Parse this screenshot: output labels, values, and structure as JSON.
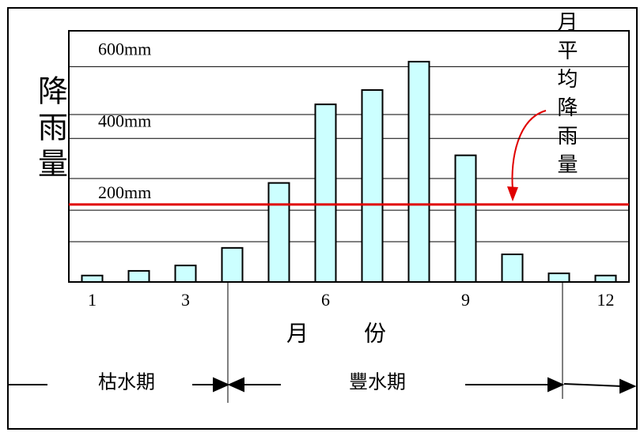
{
  "chart_data": {
    "type": "bar",
    "categories": [
      "1",
      null,
      "3",
      null,
      null,
      "6",
      null,
      null,
      "9",
      null,
      null,
      "12"
    ],
    "values": [
      18,
      31,
      46,
      95,
      276,
      495,
      535,
      614,
      353,
      77,
      24,
      18
    ],
    "color": "#ccffff",
    "ylim": [
      0,
      700
    ],
    "yticks": [
      {
        "value": 200,
        "label": "200mm"
      },
      {
        "value": 400,
        "label": "400mm"
      },
      {
        "value": 600,
        "label": "600mm"
      }
    ],
    "grid": true,
    "y_title": "降雨量",
    "x_title": "月份",
    "reference_line": {
      "label": "月平均降雨量",
      "value": 216,
      "color": "#e00000"
    },
    "periods": [
      "枯水期",
      "豐水期"
    ]
  }
}
